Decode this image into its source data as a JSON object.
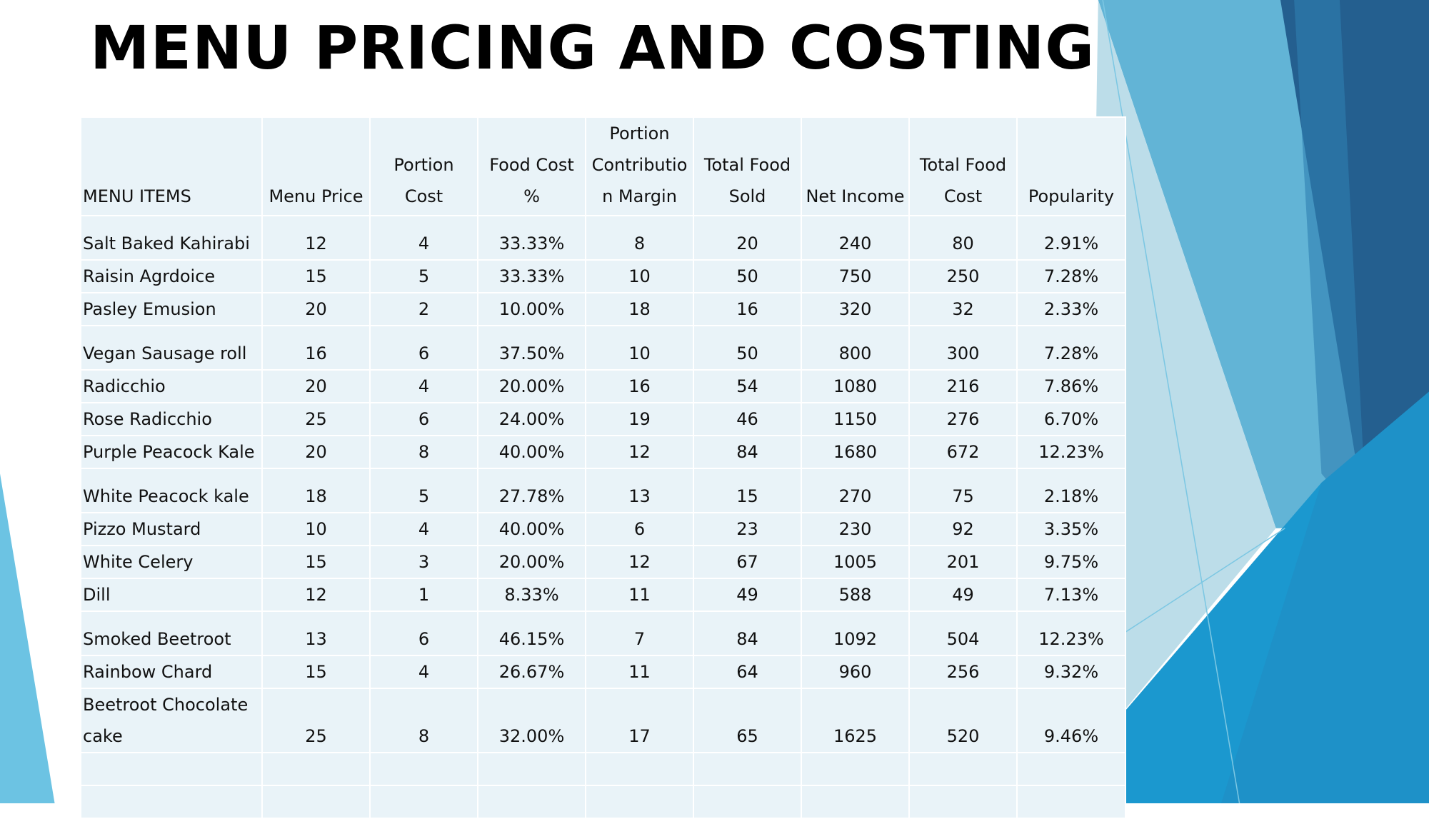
{
  "title": "MENU PRICING AND COSTING",
  "table": {
    "columns": [
      "MENU ITEMS",
      "Menu Price",
      "Portion Cost",
      "Food Cost %",
      "Portion Contribution Margin",
      "Total Food Sold",
      "Net Income",
      "Total Food Cost",
      "Popularity"
    ],
    "rows": [
      [
        "Salt Baked Kahirabi",
        "12",
        "4",
        "33.33%",
        "8",
        "20",
        "240",
        "80",
        "2.91%"
      ],
      [
        "Raisin Agrdoice",
        "15",
        "5",
        "33.33%",
        "10",
        "50",
        "750",
        "250",
        "7.28%"
      ],
      [
        "Pasley Emusion",
        "20",
        "2",
        "10.00%",
        "18",
        "16",
        "320",
        "32",
        "2.33%"
      ],
      [
        "Vegan Sausage roll",
        "16",
        "6",
        "37.50%",
        "10",
        "50",
        "800",
        "300",
        "7.28%"
      ],
      [
        "Radicchio",
        "20",
        "4",
        "20.00%",
        "16",
        "54",
        "1080",
        "216",
        "7.86%"
      ],
      [
        "Rose Radicchio",
        "25",
        "6",
        "24.00%",
        "19",
        "46",
        "1150",
        "276",
        "6.70%"
      ],
      [
        "Purple Peacock Kale",
        "20",
        "8",
        "40.00%",
        "12",
        "84",
        "1680",
        "672",
        "12.23%"
      ],
      [
        "White Peacock kale",
        "18",
        "5",
        "27.78%",
        "13",
        "15",
        "270",
        "75",
        "2.18%"
      ],
      [
        "Pizzo Mustard",
        "10",
        "4",
        "40.00%",
        "6",
        "23",
        "230",
        "92",
        "3.35%"
      ],
      [
        "White Celery",
        "15",
        "3",
        "20.00%",
        "12",
        "67",
        "1005",
        "201",
        "9.75%"
      ],
      [
        "Dill",
        "12",
        "1",
        "8.33%",
        "11",
        "49",
        "588",
        "49",
        "7.13%"
      ],
      [
        "Smoked Beetroot",
        "13",
        "6",
        "46.15%",
        "7",
        "84",
        "1092",
        "504",
        "12.23%"
      ],
      [
        "Rainbow Chard",
        "15",
        "4",
        "26.67%",
        "11",
        "64",
        "960",
        "256",
        "9.32%"
      ],
      [
        "Beetroot Chocolate cake",
        "25",
        "8",
        "32.00%",
        "17",
        "65",
        "1625",
        "520",
        "9.46%"
      ]
    ]
  }
}
